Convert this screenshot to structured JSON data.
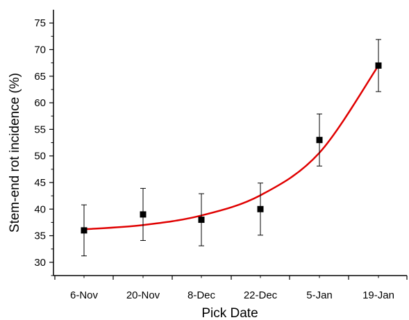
{
  "chart_data": {
    "type": "scatter",
    "xlabel": "Pick Date",
    "ylabel": "Stem-end rot incidence (%)",
    "categories": [
      "6-Nov",
      "20-Nov",
      "8-Dec",
      "22-Dec",
      "5-Jan",
      "19-Jan"
    ],
    "yticks": [
      "30",
      "35",
      "40",
      "45",
      "50",
      "55",
      "60",
      "65",
      "70",
      "75"
    ],
    "ylim": [
      27.5,
      77.5
    ],
    "grid": false,
    "legend": "none",
    "series": [
      {
        "values": [
          36,
          39,
          38,
          40,
          53,
          67
        ],
        "error": [
          4.8,
          4.9,
          4.9,
          4.9,
          4.9,
          4.9
        ],
        "marker": "square",
        "color": "#000000"
      }
    ],
    "fit": {
      "type": "exponential",
      "color": "#e00000",
      "points": [
        36.2,
        37.0,
        38.8,
        42.6,
        50.6,
        67.0
      ]
    }
  }
}
